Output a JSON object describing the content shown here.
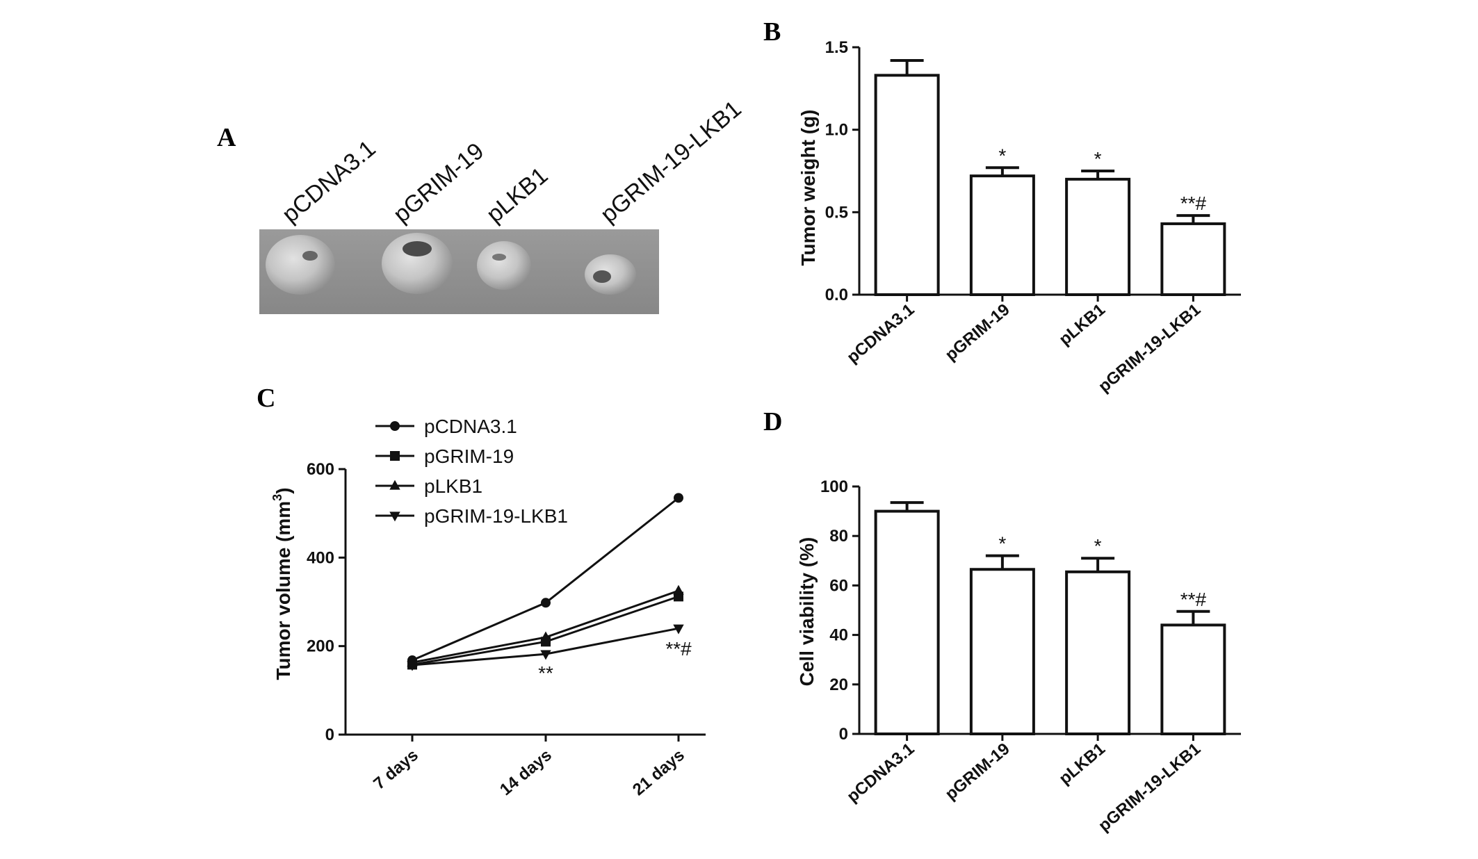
{
  "panels": {
    "a": "A",
    "b": "B",
    "c": "C",
    "d": "D"
  },
  "colors": {
    "ink": "#111111",
    "photo_bg": "#8f8f8f"
  },
  "chart_data": [
    {
      "panel": "A",
      "type": "image",
      "labels": [
        "pCDNA3.1",
        "pGRIM-19",
        "pLKB1",
        "pGRIM-19-LKB1"
      ]
    },
    {
      "panel": "B",
      "type": "bar",
      "categories": [
        "pCDNA3.1",
        "pGRIM-19",
        "pLKB1",
        "pGRIM-19-LKB1"
      ],
      "values": [
        1.33,
        0.72,
        0.7,
        0.43
      ],
      "errors": [
        0.09,
        0.05,
        0.05,
        0.05
      ],
      "annotations": [
        "",
        "*",
        "*",
        "**#"
      ],
      "ylabel": "Tumor weight  (g)",
      "ylim": [
        0,
        1.5
      ],
      "yticks": [
        0.0,
        0.5,
        1.0,
        1.5
      ],
      "ytick_labels": [
        "0.0",
        "0.5",
        "1.0",
        "1.5"
      ]
    },
    {
      "panel": "C",
      "type": "line",
      "categories": [
        "7 days",
        "14 days",
        "21 days"
      ],
      "series": [
        {
          "name": "pCDNA3.1",
          "marker": "circle",
          "values": [
            168,
            298,
            535
          ]
        },
        {
          "name": "pGRIM-19",
          "marker": "square",
          "values": [
            158,
            210,
            312
          ]
        },
        {
          "name": "pLKB1",
          "marker": "triangle-up",
          "values": [
            163,
            220,
            325
          ]
        },
        {
          "name": "pGRIM-19-LKB1",
          "marker": "triangle-down",
          "values": [
            157,
            182,
            240
          ]
        }
      ],
      "annotations": [
        {
          "category": "14 days",
          "text": "**"
        },
        {
          "category": "21 days",
          "text": "**#"
        }
      ],
      "ylabel": "Tumor volume (mm",
      "ylabel_sup": "3",
      "ylabel_end": ")",
      "ylim": [
        0,
        600
      ],
      "yticks": [
        0,
        200,
        400,
        600
      ],
      "ytick_labels": [
        "0",
        "200",
        "400",
        "600"
      ],
      "legend_position": "top-left"
    },
    {
      "panel": "D",
      "type": "bar",
      "categories": [
        "pCDNA3.1",
        "pGRIM-19",
        "pLKB1",
        "pGRIM-19-LKB1"
      ],
      "values": [
        90,
        66.5,
        65.5,
        44
      ],
      "errors": [
        3.5,
        5.5,
        5.5,
        5.5
      ],
      "annotations": [
        "",
        "*",
        "*",
        "**#"
      ],
      "ylabel": "Cell viability (%)",
      "ylim": [
        0,
        100
      ],
      "yticks": [
        0,
        20,
        40,
        60,
        80,
        100
      ],
      "ytick_labels": [
        "0",
        "20",
        "40",
        "60",
        "80",
        "100"
      ]
    }
  ]
}
